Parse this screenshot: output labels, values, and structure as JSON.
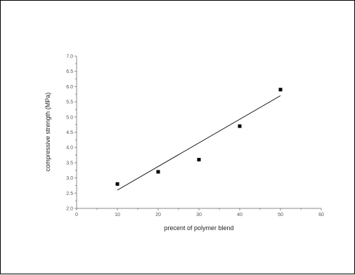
{
  "chart_data": {
    "type": "scatter",
    "title": "",
    "xlabel": "precent of polymer blend",
    "ylabel": "compressive strength (MPa)",
    "xlim": [
      0,
      60
    ],
    "ylim": [
      2.0,
      7.0
    ],
    "x_ticks": [
      "0",
      "10",
      "20",
      "30",
      "40",
      "50",
      "60"
    ],
    "y_ticks": [
      "2.0",
      "2.5",
      "3.0",
      "3.5",
      "4.0",
      "4.5",
      "5.0",
      "5.5",
      "6.0",
      "6.5",
      "7.0"
    ],
    "grid": false,
    "series": [
      {
        "marker": "square",
        "points": [
          {
            "x": 10,
            "y": 2.8
          },
          {
            "x": 20,
            "y": 3.2
          },
          {
            "x": 30,
            "y": 3.6
          },
          {
            "x": 40,
            "y": 4.7
          },
          {
            "x": 50,
            "y": 5.9
          }
        ]
      }
    ],
    "fit_line": {
      "type": "linear",
      "start": {
        "x": 10,
        "y": 2.6
      },
      "end": {
        "x": 50,
        "y": 5.7
      }
    },
    "colors": {
      "marker": "#000000",
      "line": "#000000",
      "axis": "#888888"
    }
  }
}
